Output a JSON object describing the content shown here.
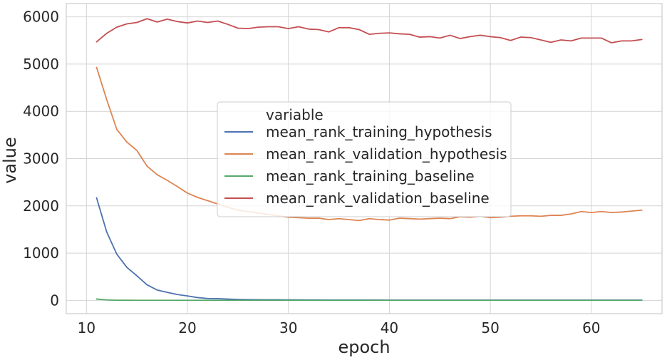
{
  "chart_data": {
    "type": "line",
    "xlabel": "epoch",
    "ylabel": "value",
    "xlim": [
      8,
      67
    ],
    "ylim": [
      -280,
      6280
    ],
    "xticks": [
      10,
      20,
      30,
      40,
      50,
      60
    ],
    "yticks": [
      0,
      1000,
      2000,
      3000,
      4000,
      5000,
      6000
    ],
    "grid": true,
    "legend": {
      "title": "variable",
      "placement": "center-right"
    },
    "x": [
      11,
      12,
      13,
      14,
      15,
      16,
      17,
      18,
      19,
      20,
      21,
      22,
      23,
      24,
      25,
      26,
      27,
      28,
      29,
      30,
      31,
      32,
      33,
      34,
      35,
      36,
      37,
      38,
      39,
      40,
      41,
      42,
      43,
      44,
      45,
      46,
      47,
      48,
      49,
      50,
      51,
      52,
      53,
      54,
      55,
      56,
      57,
      58,
      59,
      60,
      61,
      62,
      63,
      64,
      65
    ],
    "series": [
      {
        "name": "mean_rank_training_hypothesis",
        "color": "#4c72b0",
        "values": [
          2170,
          1450,
          980,
          700,
          520,
          330,
          220,
          170,
          125,
          95,
          60,
          40,
          38,
          28,
          22,
          18,
          16,
          14,
          13,
          12,
          11,
          10,
          10,
          9,
          9,
          8,
          8,
          8,
          8,
          7,
          7,
          7,
          7,
          7,
          7,
          6,
          6,
          6,
          6,
          6,
          6,
          6,
          6,
          6,
          6,
          6,
          6,
          6,
          6,
          6,
          6,
          6,
          6,
          6,
          6
        ]
      },
      {
        "name": "mean_rank_validation_hypothesis",
        "color": "#dd8452",
        "values": [
          4930,
          4250,
          3620,
          3350,
          3170,
          2840,
          2660,
          2540,
          2410,
          2270,
          2180,
          2110,
          2040,
          1970,
          1910,
          1880,
          1850,
          1820,
          1790,
          1760,
          1750,
          1740,
          1740,
          1710,
          1730,
          1710,
          1690,
          1730,
          1710,
          1700,
          1740,
          1730,
          1720,
          1730,
          1740,
          1730,
          1770,
          1760,
          1780,
          1750,
          1760,
          1780,
          1790,
          1790,
          1780,
          1800,
          1800,
          1830,
          1880,
          1860,
          1880,
          1860,
          1870,
          1890,
          1910
        ]
      },
      {
        "name": "mean_rank_training_baseline",
        "color": "#55a868",
        "values": [
          30,
          10,
          5,
          4,
          3,
          3,
          3,
          3,
          3,
          3,
          3,
          3,
          3,
          3,
          3,
          3,
          3,
          3,
          3,
          3,
          3,
          3,
          3,
          3,
          3,
          3,
          3,
          3,
          3,
          3,
          3,
          3,
          3,
          3,
          3,
          3,
          3,
          3,
          3,
          3,
          3,
          3,
          3,
          3,
          3,
          3,
          3,
          3,
          3,
          3,
          3,
          3,
          3,
          3,
          3
        ]
      },
      {
        "name": "mean_rank_validation_baseline",
        "color": "#c44e52",
        "values": [
          5470,
          5650,
          5780,
          5850,
          5880,
          5960,
          5890,
          5950,
          5900,
          5870,
          5910,
          5880,
          5910,
          5840,
          5760,
          5750,
          5780,
          5790,
          5790,
          5750,
          5790,
          5740,
          5730,
          5680,
          5770,
          5770,
          5730,
          5630,
          5650,
          5660,
          5640,
          5630,
          5570,
          5580,
          5550,
          5610,
          5540,
          5580,
          5610,
          5580,
          5560,
          5500,
          5570,
          5560,
          5510,
          5460,
          5510,
          5490,
          5550,
          5550,
          5550,
          5450,
          5490,
          5490,
          5520
        ]
      }
    ]
  }
}
